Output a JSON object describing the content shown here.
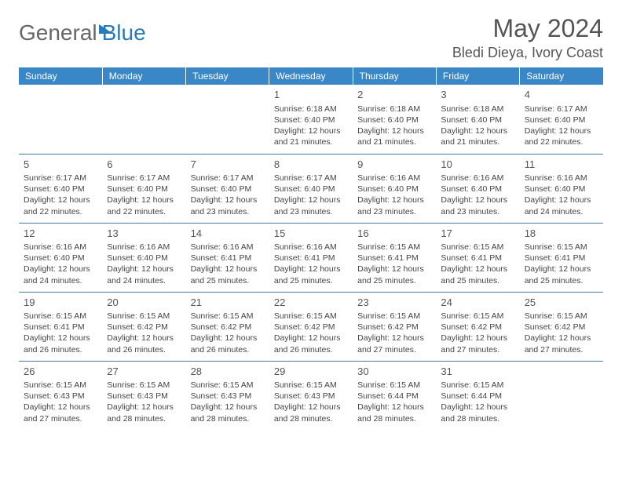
{
  "logo": {
    "text1": "General",
    "text2": "Blue"
  },
  "title": "May 2024",
  "location": "Bledi Dieya, Ivory Coast",
  "colors": {
    "header_bg": "#3a87c7",
    "header_text": "#ffffff",
    "border": "#4a7ba5",
    "logo_blue": "#2a7ab9",
    "text": "#444444",
    "bg": "#ffffff"
  },
  "day_headers": [
    "Sunday",
    "Monday",
    "Tuesday",
    "Wednesday",
    "Thursday",
    "Friday",
    "Saturday"
  ],
  "weeks": [
    [
      {
        "n": "",
        "sr": "",
        "ss": "",
        "dl": ""
      },
      {
        "n": "",
        "sr": "",
        "ss": "",
        "dl": ""
      },
      {
        "n": "",
        "sr": "",
        "ss": "",
        "dl": ""
      },
      {
        "n": "1",
        "sr": "Sunrise: 6:18 AM",
        "ss": "Sunset: 6:40 PM",
        "dl": "Daylight: 12 hours and 21 minutes."
      },
      {
        "n": "2",
        "sr": "Sunrise: 6:18 AM",
        "ss": "Sunset: 6:40 PM",
        "dl": "Daylight: 12 hours and 21 minutes."
      },
      {
        "n": "3",
        "sr": "Sunrise: 6:18 AM",
        "ss": "Sunset: 6:40 PM",
        "dl": "Daylight: 12 hours and 21 minutes."
      },
      {
        "n": "4",
        "sr": "Sunrise: 6:17 AM",
        "ss": "Sunset: 6:40 PM",
        "dl": "Daylight: 12 hours and 22 minutes."
      }
    ],
    [
      {
        "n": "5",
        "sr": "Sunrise: 6:17 AM",
        "ss": "Sunset: 6:40 PM",
        "dl": "Daylight: 12 hours and 22 minutes."
      },
      {
        "n": "6",
        "sr": "Sunrise: 6:17 AM",
        "ss": "Sunset: 6:40 PM",
        "dl": "Daylight: 12 hours and 22 minutes."
      },
      {
        "n": "7",
        "sr": "Sunrise: 6:17 AM",
        "ss": "Sunset: 6:40 PM",
        "dl": "Daylight: 12 hours and 23 minutes."
      },
      {
        "n": "8",
        "sr": "Sunrise: 6:17 AM",
        "ss": "Sunset: 6:40 PM",
        "dl": "Daylight: 12 hours and 23 minutes."
      },
      {
        "n": "9",
        "sr": "Sunrise: 6:16 AM",
        "ss": "Sunset: 6:40 PM",
        "dl": "Daylight: 12 hours and 23 minutes."
      },
      {
        "n": "10",
        "sr": "Sunrise: 6:16 AM",
        "ss": "Sunset: 6:40 PM",
        "dl": "Daylight: 12 hours and 23 minutes."
      },
      {
        "n": "11",
        "sr": "Sunrise: 6:16 AM",
        "ss": "Sunset: 6:40 PM",
        "dl": "Daylight: 12 hours and 24 minutes."
      }
    ],
    [
      {
        "n": "12",
        "sr": "Sunrise: 6:16 AM",
        "ss": "Sunset: 6:40 PM",
        "dl": "Daylight: 12 hours and 24 minutes."
      },
      {
        "n": "13",
        "sr": "Sunrise: 6:16 AM",
        "ss": "Sunset: 6:40 PM",
        "dl": "Daylight: 12 hours and 24 minutes."
      },
      {
        "n": "14",
        "sr": "Sunrise: 6:16 AM",
        "ss": "Sunset: 6:41 PM",
        "dl": "Daylight: 12 hours and 25 minutes."
      },
      {
        "n": "15",
        "sr": "Sunrise: 6:16 AM",
        "ss": "Sunset: 6:41 PM",
        "dl": "Daylight: 12 hours and 25 minutes."
      },
      {
        "n": "16",
        "sr": "Sunrise: 6:15 AM",
        "ss": "Sunset: 6:41 PM",
        "dl": "Daylight: 12 hours and 25 minutes."
      },
      {
        "n": "17",
        "sr": "Sunrise: 6:15 AM",
        "ss": "Sunset: 6:41 PM",
        "dl": "Daylight: 12 hours and 25 minutes."
      },
      {
        "n": "18",
        "sr": "Sunrise: 6:15 AM",
        "ss": "Sunset: 6:41 PM",
        "dl": "Daylight: 12 hours and 25 minutes."
      }
    ],
    [
      {
        "n": "19",
        "sr": "Sunrise: 6:15 AM",
        "ss": "Sunset: 6:41 PM",
        "dl": "Daylight: 12 hours and 26 minutes."
      },
      {
        "n": "20",
        "sr": "Sunrise: 6:15 AM",
        "ss": "Sunset: 6:42 PM",
        "dl": "Daylight: 12 hours and 26 minutes."
      },
      {
        "n": "21",
        "sr": "Sunrise: 6:15 AM",
        "ss": "Sunset: 6:42 PM",
        "dl": "Daylight: 12 hours and 26 minutes."
      },
      {
        "n": "22",
        "sr": "Sunrise: 6:15 AM",
        "ss": "Sunset: 6:42 PM",
        "dl": "Daylight: 12 hours and 26 minutes."
      },
      {
        "n": "23",
        "sr": "Sunrise: 6:15 AM",
        "ss": "Sunset: 6:42 PM",
        "dl": "Daylight: 12 hours and 27 minutes."
      },
      {
        "n": "24",
        "sr": "Sunrise: 6:15 AM",
        "ss": "Sunset: 6:42 PM",
        "dl": "Daylight: 12 hours and 27 minutes."
      },
      {
        "n": "25",
        "sr": "Sunrise: 6:15 AM",
        "ss": "Sunset: 6:42 PM",
        "dl": "Daylight: 12 hours and 27 minutes."
      }
    ],
    [
      {
        "n": "26",
        "sr": "Sunrise: 6:15 AM",
        "ss": "Sunset: 6:43 PM",
        "dl": "Daylight: 12 hours and 27 minutes."
      },
      {
        "n": "27",
        "sr": "Sunrise: 6:15 AM",
        "ss": "Sunset: 6:43 PM",
        "dl": "Daylight: 12 hours and 28 minutes."
      },
      {
        "n": "28",
        "sr": "Sunrise: 6:15 AM",
        "ss": "Sunset: 6:43 PM",
        "dl": "Daylight: 12 hours and 28 minutes."
      },
      {
        "n": "29",
        "sr": "Sunrise: 6:15 AM",
        "ss": "Sunset: 6:43 PM",
        "dl": "Daylight: 12 hours and 28 minutes."
      },
      {
        "n": "30",
        "sr": "Sunrise: 6:15 AM",
        "ss": "Sunset: 6:44 PM",
        "dl": "Daylight: 12 hours and 28 minutes."
      },
      {
        "n": "31",
        "sr": "Sunrise: 6:15 AM",
        "ss": "Sunset: 6:44 PM",
        "dl": "Daylight: 12 hours and 28 minutes."
      },
      {
        "n": "",
        "sr": "",
        "ss": "",
        "dl": ""
      }
    ]
  ]
}
